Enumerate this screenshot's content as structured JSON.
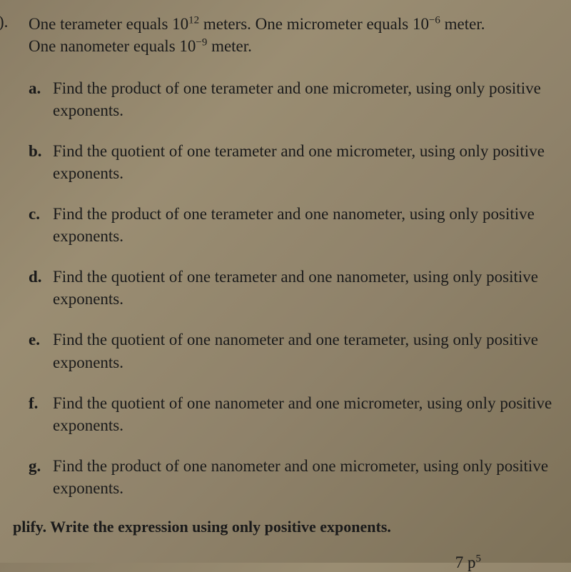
{
  "document": {
    "background_color": "#8f826a",
    "text_color": "#1a1a1a",
    "font_family": "Times New Roman",
    "main_fontsize": 23
  },
  "question": {
    "number_marker": ").",
    "intro_line1_pre": "One terameter equals 10",
    "intro_line1_exp1": "12",
    "intro_line1_mid": " meters. One micrometer equals 10",
    "intro_line1_exp2": "−6",
    "intro_line1_post": " meter.",
    "intro_line2_pre": "One nanometer equals 10",
    "intro_line2_exp": "−9",
    "intro_line2_post": " meter."
  },
  "items": {
    "a": {
      "letter": "a.",
      "text": "Find the product of one terameter and one micrometer, using only positive exponents."
    },
    "b": {
      "letter": "b.",
      "text": "Find the quotient of one terameter and one micrometer, using only positive exponents."
    },
    "c": {
      "letter": "c.",
      "text": "Find the product of one terameter and one nanometer, using only positive exponents."
    },
    "d": {
      "letter": "d.",
      "text": "Find the quotient of one terameter and one nanometer, using only positive exponents."
    },
    "e": {
      "letter": "e.",
      "text": "Find the quotient of one nanometer and one terameter, using only positive exponents."
    },
    "f": {
      "letter": "f.",
      "text": "Find the quotient of one nanometer and one micrometer, using only positive exponents."
    },
    "g": {
      "letter": "g.",
      "text": "Find the product of one nanometer and one micrometer, using only positive exponents."
    }
  },
  "footer": {
    "simplify_text": "plify. Write the expression using only positive exponents.",
    "frag_right_pre": "7 p",
    "frag_right_exp": "5"
  }
}
